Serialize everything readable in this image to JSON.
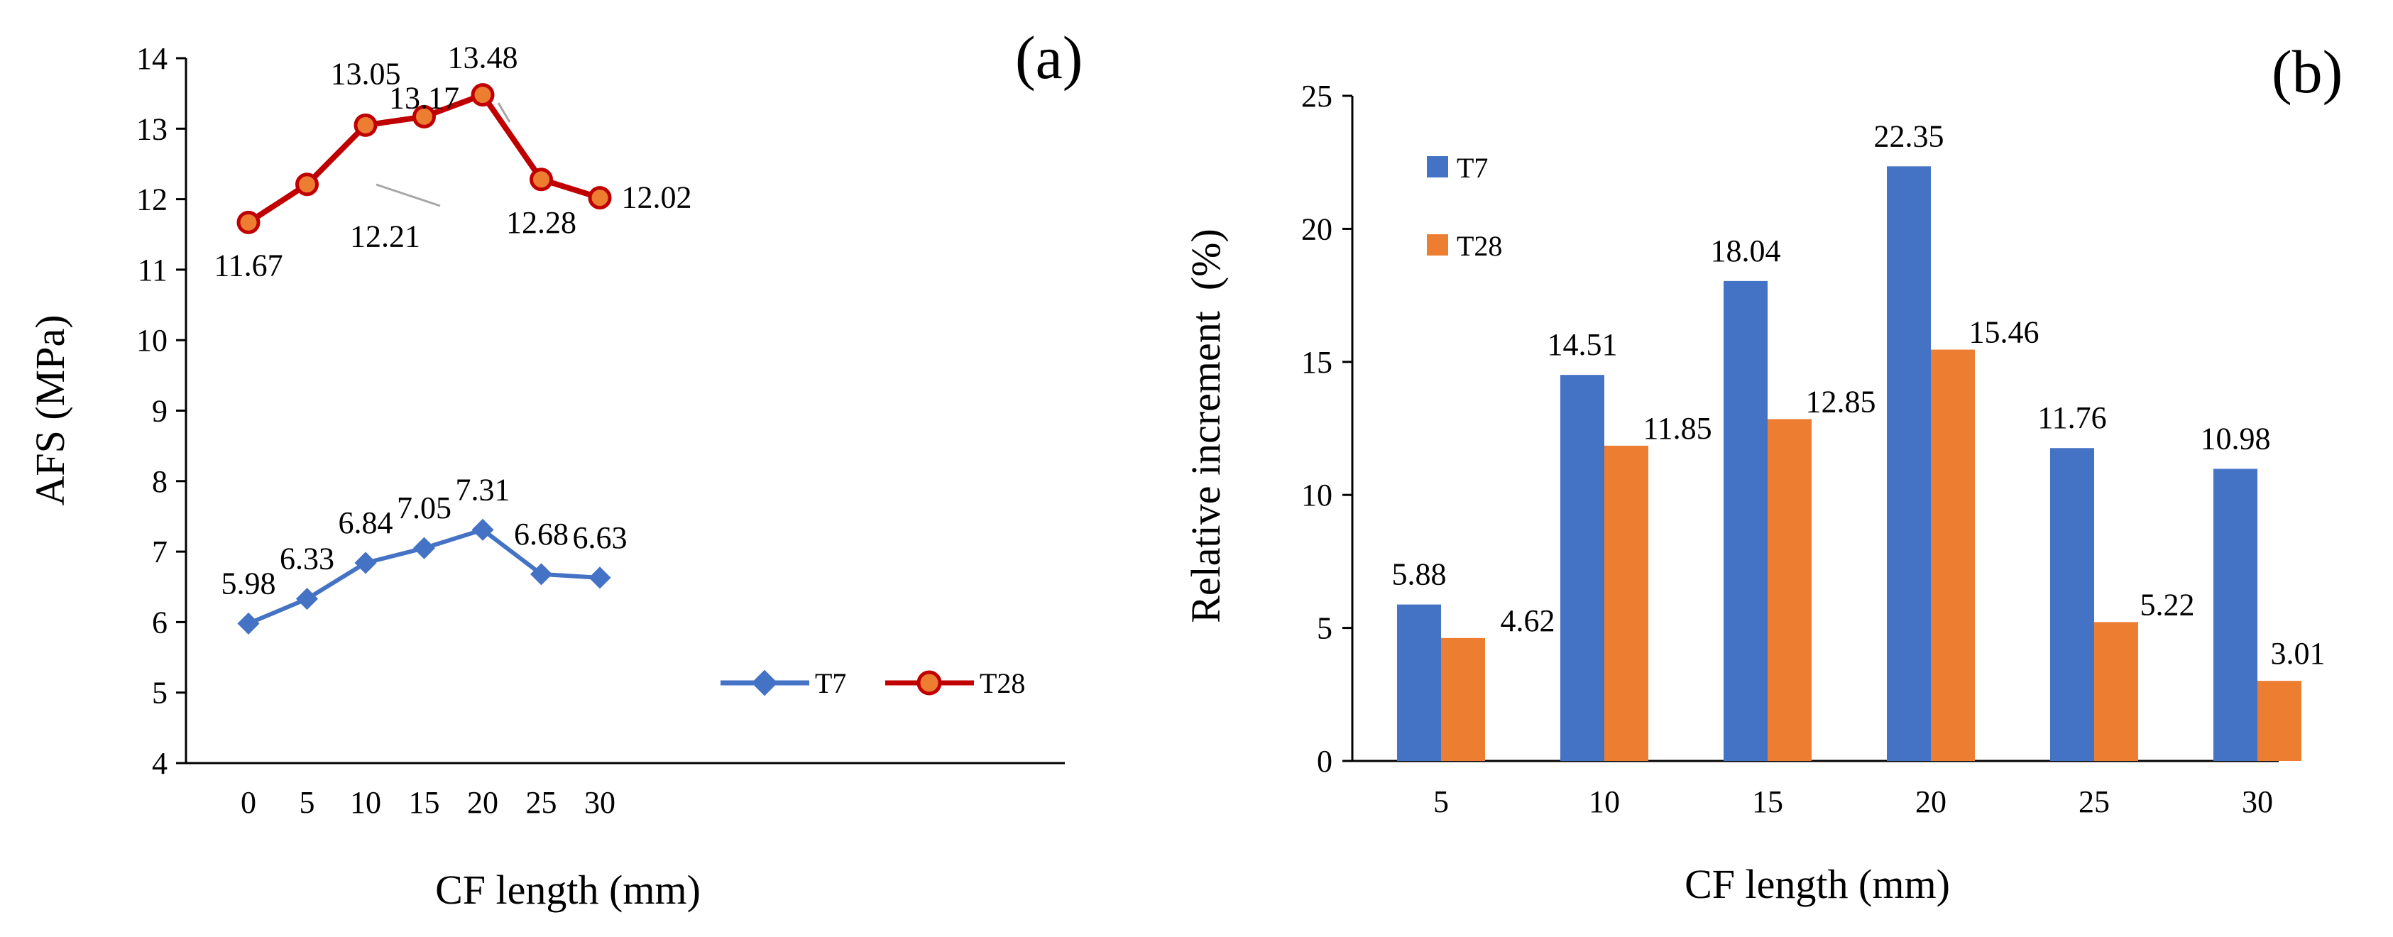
{
  "chart_data": [
    {
      "panel": "(a)",
      "type": "line",
      "xlabel": "CF length (mm)",
      "ylabel": "AFS (MPa)",
      "ylim": [
        4,
        14
      ],
      "yticks": [
        "4",
        "5",
        "6",
        "7",
        "8",
        "9",
        "10",
        "11",
        "12",
        "13",
        "14"
      ],
      "x": [
        "0",
        "5",
        "10",
        "15",
        "20",
        "25",
        "30"
      ],
      "series": [
        {
          "name": "T7",
          "values": [
            5.98,
            6.33,
            6.84,
            7.05,
            7.31,
            6.68,
            6.63
          ],
          "labels": [
            "5.98",
            "6.33",
            "6.84",
            "7.05",
            "7.31",
            "6.68",
            "6.63"
          ],
          "color": "#4472C4",
          "marker": "diamond"
        },
        {
          "name": "T28",
          "values": [
            11.67,
            12.21,
            13.05,
            13.17,
            13.48,
            12.28,
            12.02
          ],
          "labels": [
            "11.67",
            "12.21",
            "13.05",
            "13.17",
            "13.48",
            "12.28",
            "12.02"
          ],
          "color": "#C00000",
          "marker_fill": "#ED7D31",
          "marker": "circle"
        }
      ],
      "legend": "bottom-right",
      "grid": false
    },
    {
      "panel": "(b)",
      "type": "bar",
      "xlabel": "CF length (mm)",
      "ylabel": "Relative increment  (%)",
      "ylim": [
        0,
        25
      ],
      "yticks": [
        "0",
        "5",
        "10",
        "15",
        "20",
        "25"
      ],
      "categories": [
        "5",
        "10",
        "15",
        "20",
        "25",
        "30"
      ],
      "series": [
        {
          "name": "T7",
          "values": [
            5.88,
            14.51,
            18.04,
            22.35,
            11.76,
            10.98
          ],
          "labels": [
            "5.88",
            "14.51",
            "18.04",
            "22.35",
            "11.76",
            "10.98"
          ],
          "color": "#4472C4"
        },
        {
          "name": "T28",
          "values": [
            4.62,
            11.85,
            12.85,
            15.46,
            5.22,
            3.01
          ],
          "labels": [
            "4.62",
            "11.85",
            "12.85",
            "15.46",
            "5.22",
            "3.01"
          ],
          "color": "#ED7D31"
        }
      ],
      "legend": "top-left",
      "grid": false
    }
  ]
}
